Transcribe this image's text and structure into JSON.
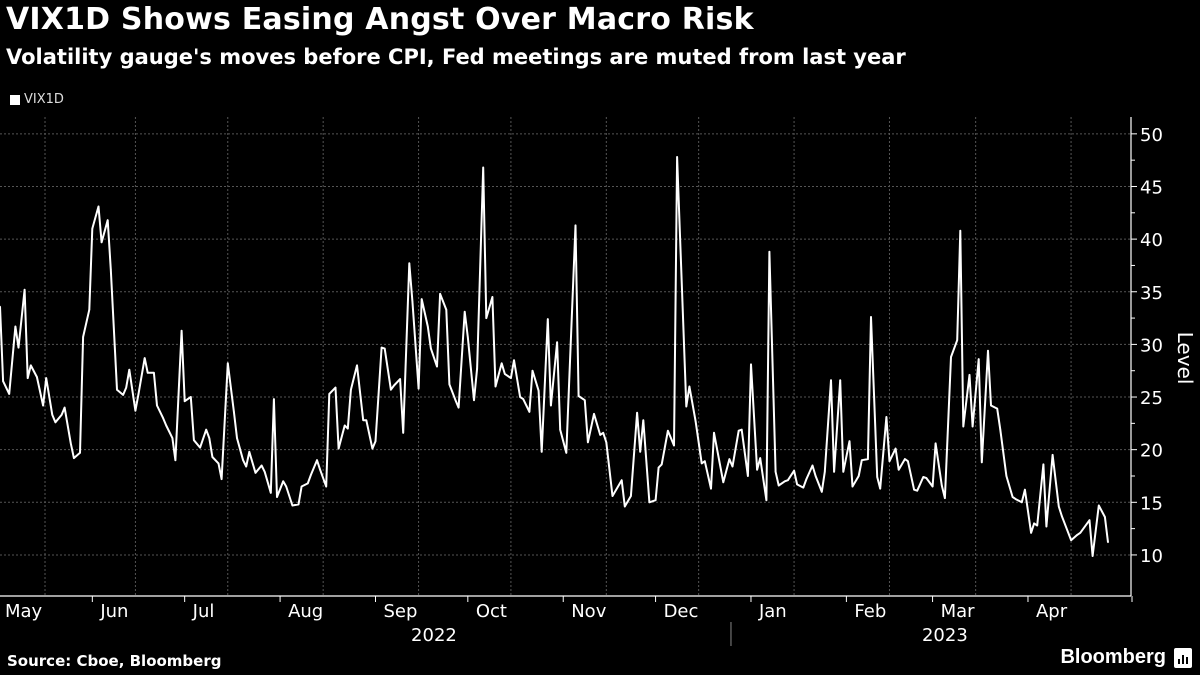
{
  "title": "VIX1D Shows Easing Angst Over Macro Risk",
  "subtitle": "Volatility gauge's moves before CPI, Fed meetings are muted from last year",
  "source": "Source: Cboe, Bloomberg",
  "brand": "Bloomberg",
  "colors": {
    "background": "#000000",
    "line": "#ffffff",
    "grid": "#555555"
  },
  "chart_data": {
    "type": "line",
    "title": "VIX1D Shows Easing Angst Over Macro Risk",
    "ylabel": "Level",
    "xlabel": "",
    "ylim": [
      6.1,
      51.6
    ],
    "xlim": [
      "2022-05-02",
      "2023-04-27"
    ],
    "y_ticks": [
      10,
      15,
      20,
      25,
      30,
      35,
      40,
      45,
      50
    ],
    "x_month_labels": [
      {
        "label": "May",
        "date": "2022-05-01"
      },
      {
        "label": "Jun",
        "date": "2022-06-01"
      },
      {
        "label": "Jul",
        "date": "2022-07-01"
      },
      {
        "label": "Aug",
        "date": "2022-08-01"
      },
      {
        "label": "Sep",
        "date": "2022-09-01"
      },
      {
        "label": "Oct",
        "date": "2022-10-01"
      },
      {
        "label": "Nov",
        "date": "2022-11-01"
      },
      {
        "label": "Dec",
        "date": "2022-12-01"
      },
      {
        "label": "Jan",
        "date": "2023-01-01"
      },
      {
        "label": "Feb",
        "date": "2023-02-01"
      },
      {
        "label": "Mar",
        "date": "2023-03-01"
      },
      {
        "label": "Apr",
        "date": "2023-04-01"
      }
    ],
    "x_year_labels": [
      {
        "label": "2022",
        "date": "2022-09-20"
      },
      {
        "label": "2023",
        "date": "2023-03-05"
      }
    ],
    "year_separator": "2023-01-01",
    "grid": true,
    "legend_position": "top-left",
    "series": [
      {
        "name": "VIX1D",
        "color": "#ffffff",
        "points": [
          [
            "2022-05-02",
            33.6
          ],
          [
            "2022-05-03",
            26.5
          ],
          [
            "2022-05-05",
            25.3
          ],
          [
            "2022-05-07",
            31.7
          ],
          [
            "2022-05-08",
            29.7
          ],
          [
            "2022-05-10",
            35.2
          ],
          [
            "2022-05-11",
            26.8
          ],
          [
            "2022-05-12",
            28.0
          ],
          [
            "2022-05-14",
            26.9
          ],
          [
            "2022-05-16",
            24.2
          ],
          [
            "2022-05-17",
            26.8
          ],
          [
            "2022-05-19",
            23.3
          ],
          [
            "2022-05-20",
            22.6
          ],
          [
            "2022-05-22",
            23.3
          ],
          [
            "2022-05-23",
            24.0
          ],
          [
            "2022-05-25",
            20.6
          ],
          [
            "2022-05-26",
            19.2
          ],
          [
            "2022-05-28",
            19.7
          ],
          [
            "2022-05-29",
            30.7
          ],
          [
            "2022-05-31",
            33.3
          ],
          [
            "2022-06-01",
            41.0
          ],
          [
            "2022-06-03",
            43.1
          ],
          [
            "2022-06-04",
            39.7
          ],
          [
            "2022-06-06",
            41.8
          ],
          [
            "2022-06-07",
            37.1
          ],
          [
            "2022-06-09",
            25.7
          ],
          [
            "2022-06-11",
            25.2
          ],
          [
            "2022-06-12",
            25.9
          ],
          [
            "2022-06-13",
            27.6
          ],
          [
            "2022-06-15",
            23.7
          ],
          [
            "2022-06-16",
            25.3
          ],
          [
            "2022-06-18",
            28.7
          ],
          [
            "2022-06-19",
            27.3
          ],
          [
            "2022-06-21",
            27.3
          ],
          [
            "2022-06-22",
            24.2
          ],
          [
            "2022-06-24",
            23.0
          ],
          [
            "2022-06-25",
            22.3
          ],
          [
            "2022-06-27",
            21.1
          ],
          [
            "2022-06-28",
            19.0
          ],
          [
            "2022-06-30",
            31.3
          ],
          [
            "2022-07-01",
            24.6
          ],
          [
            "2022-07-03",
            25.0
          ],
          [
            "2022-07-04",
            20.9
          ],
          [
            "2022-07-06",
            20.2
          ],
          [
            "2022-07-08",
            21.9
          ],
          [
            "2022-07-09",
            21.1
          ],
          [
            "2022-07-10",
            19.3
          ],
          [
            "2022-07-12",
            18.7
          ],
          [
            "2022-07-13",
            17.2
          ],
          [
            "2022-07-15",
            28.2
          ],
          [
            "2022-07-17",
            23.6
          ],
          [
            "2022-07-18",
            21.1
          ],
          [
            "2022-07-20",
            19.0
          ],
          [
            "2022-07-21",
            18.4
          ],
          [
            "2022-07-22",
            19.8
          ],
          [
            "2022-07-24",
            17.8
          ],
          [
            "2022-07-26",
            18.5
          ],
          [
            "2022-07-27",
            17.9
          ],
          [
            "2022-07-29",
            15.9
          ],
          [
            "2022-07-30",
            24.8
          ],
          [
            "2022-07-31",
            15.5
          ],
          [
            "2022-08-02",
            17.0
          ],
          [
            "2022-08-03",
            16.5
          ],
          [
            "2022-08-05",
            14.7
          ],
          [
            "2022-08-07",
            14.8
          ],
          [
            "2022-08-08",
            16.5
          ],
          [
            "2022-08-10",
            16.8
          ],
          [
            "2022-08-11",
            17.6
          ],
          [
            "2022-08-13",
            19.0
          ],
          [
            "2022-08-14",
            18.1
          ],
          [
            "2022-08-16",
            16.5
          ],
          [
            "2022-08-17",
            25.3
          ],
          [
            "2022-08-19",
            25.9
          ],
          [
            "2022-08-20",
            20.1
          ],
          [
            "2022-08-22",
            22.3
          ],
          [
            "2022-08-23",
            22.0
          ],
          [
            "2022-08-24",
            25.7
          ],
          [
            "2022-08-26",
            28.0
          ],
          [
            "2022-08-28",
            22.8
          ],
          [
            "2022-08-29",
            22.8
          ],
          [
            "2022-08-31",
            20.1
          ],
          [
            "2022-09-01",
            20.8
          ],
          [
            "2022-09-03",
            29.7
          ],
          [
            "2022-09-04",
            29.6
          ],
          [
            "2022-09-06",
            25.7
          ],
          [
            "2022-09-07",
            26.1
          ],
          [
            "2022-09-09",
            26.7
          ],
          [
            "2022-09-10",
            21.6
          ],
          [
            "2022-09-12",
            37.7
          ],
          [
            "2022-09-13",
            34.1
          ],
          [
            "2022-09-15",
            25.8
          ],
          [
            "2022-09-16",
            34.3
          ],
          [
            "2022-09-18",
            31.7
          ],
          [
            "2022-09-19",
            29.6
          ],
          [
            "2022-09-21",
            27.9
          ],
          [
            "2022-09-22",
            34.8
          ],
          [
            "2022-09-24",
            33.3
          ],
          [
            "2022-09-25",
            26.2
          ],
          [
            "2022-09-27",
            24.7
          ],
          [
            "2022-09-28",
            24.0
          ],
          [
            "2022-09-30",
            33.1
          ],
          [
            "2022-10-01",
            30.7
          ],
          [
            "2022-10-03",
            24.7
          ],
          [
            "2022-10-04",
            27.7
          ],
          [
            "2022-10-06",
            46.8
          ],
          [
            "2022-10-07",
            32.5
          ],
          [
            "2022-10-09",
            34.5
          ],
          [
            "2022-10-10",
            26.0
          ],
          [
            "2022-10-12",
            28.2
          ],
          [
            "2022-10-13",
            27.2
          ],
          [
            "2022-10-15",
            26.8
          ],
          [
            "2022-10-16",
            28.5
          ],
          [
            "2022-10-18",
            25.0
          ],
          [
            "2022-10-19",
            24.8
          ],
          [
            "2022-10-21",
            23.6
          ],
          [
            "2022-10-22",
            27.5
          ],
          [
            "2022-10-24",
            25.6
          ],
          [
            "2022-10-25",
            19.8
          ],
          [
            "2022-10-27",
            32.4
          ],
          [
            "2022-10-28",
            24.2
          ],
          [
            "2022-10-30",
            30.2
          ],
          [
            "2022-10-31",
            21.9
          ],
          [
            "2022-11-02",
            19.7
          ],
          [
            "2022-11-05",
            41.3
          ],
          [
            "2022-11-06",
            25.1
          ],
          [
            "2022-11-08",
            24.7
          ],
          [
            "2022-11-09",
            20.7
          ],
          [
            "2022-11-11",
            23.4
          ],
          [
            "2022-11-13",
            21.4
          ],
          [
            "2022-11-14",
            21.6
          ],
          [
            "2022-11-15",
            20.7
          ],
          [
            "2022-11-17",
            15.6
          ],
          [
            "2022-11-20",
            17.1
          ],
          [
            "2022-11-21",
            14.6
          ],
          [
            "2022-11-23",
            15.6
          ],
          [
            "2022-11-25",
            23.5
          ],
          [
            "2022-11-26",
            19.8
          ],
          [
            "2022-11-27",
            22.8
          ],
          [
            "2022-11-29",
            15.0
          ],
          [
            "2022-12-01",
            15.2
          ],
          [
            "2022-12-02",
            18.3
          ],
          [
            "2022-12-03",
            18.6
          ],
          [
            "2022-12-05",
            21.8
          ],
          [
            "2022-12-07",
            20.4
          ],
          [
            "2022-12-08",
            47.8
          ],
          [
            "2022-12-11",
            24.1
          ],
          [
            "2022-12-12",
            26.0
          ],
          [
            "2022-12-14",
            22.7
          ],
          [
            "2022-12-16",
            18.7
          ],
          [
            "2022-12-17",
            18.9
          ],
          [
            "2022-12-19",
            16.3
          ],
          [
            "2022-12-20",
            21.6
          ],
          [
            "2022-12-23",
            16.9
          ],
          [
            "2022-12-25",
            19.1
          ],
          [
            "2022-12-26",
            18.4
          ],
          [
            "2022-12-28",
            21.8
          ],
          [
            "2022-12-29",
            21.9
          ],
          [
            "2022-12-31",
            17.5
          ],
          [
            "2023-01-01",
            28.1
          ],
          [
            "2023-01-03",
            18.1
          ],
          [
            "2023-01-04",
            19.2
          ],
          [
            "2023-01-06",
            15.2
          ],
          [
            "2023-01-07",
            38.8
          ],
          [
            "2023-01-09",
            17.9
          ],
          [
            "2023-01-10",
            16.6
          ],
          [
            "2023-01-12",
            17.0
          ],
          [
            "2023-01-13",
            17.1
          ],
          [
            "2023-01-15",
            18.0
          ],
          [
            "2023-01-16",
            16.7
          ],
          [
            "2023-01-18",
            16.4
          ],
          [
            "2023-01-19",
            17.2
          ],
          [
            "2023-01-21",
            18.5
          ],
          [
            "2023-01-22",
            17.5
          ],
          [
            "2023-01-24",
            16.0
          ],
          [
            "2023-01-25",
            17.9
          ],
          [
            "2023-01-27",
            26.6
          ],
          [
            "2023-01-28",
            17.9
          ],
          [
            "2023-01-30",
            26.6
          ],
          [
            "2023-01-31",
            17.9
          ],
          [
            "2023-02-02",
            20.8
          ],
          [
            "2023-02-03",
            16.5
          ],
          [
            "2023-02-05",
            17.5
          ],
          [
            "2023-02-06",
            19.0
          ],
          [
            "2023-02-08",
            19.1
          ],
          [
            "2023-02-09",
            32.6
          ],
          [
            "2023-02-11",
            17.4
          ],
          [
            "2023-02-12",
            16.3
          ],
          [
            "2023-02-14",
            23.1
          ],
          [
            "2023-02-15",
            18.9
          ],
          [
            "2023-02-17",
            20.1
          ],
          [
            "2023-02-18",
            18.1
          ],
          [
            "2023-02-20",
            19.1
          ],
          [
            "2023-02-21",
            18.9
          ],
          [
            "2023-02-23",
            16.2
          ],
          [
            "2023-02-24",
            16.1
          ],
          [
            "2023-02-26",
            17.4
          ],
          [
            "2023-02-27",
            17.3
          ],
          [
            "2023-03-01",
            16.5
          ],
          [
            "2023-03-02",
            20.6
          ],
          [
            "2023-03-04",
            16.6
          ],
          [
            "2023-03-05",
            15.4
          ],
          [
            "2023-03-07",
            28.8
          ],
          [
            "2023-03-09",
            30.4
          ],
          [
            "2023-03-10",
            40.8
          ],
          [
            "2023-03-11",
            22.2
          ],
          [
            "2023-03-13",
            27.1
          ],
          [
            "2023-03-14",
            22.2
          ],
          [
            "2023-03-16",
            28.6
          ],
          [
            "2023-03-17",
            18.8
          ],
          [
            "2023-03-19",
            29.4
          ],
          [
            "2023-03-20",
            24.2
          ],
          [
            "2023-03-22",
            23.9
          ],
          [
            "2023-03-23",
            21.9
          ],
          [
            "2023-03-25",
            17.5
          ],
          [
            "2023-03-27",
            15.5
          ],
          [
            "2023-03-28",
            15.3
          ],
          [
            "2023-03-30",
            15.0
          ],
          [
            "2023-03-31",
            16.2
          ],
          [
            "2023-04-02",
            12.1
          ],
          [
            "2023-04-03",
            13.0
          ],
          [
            "2023-04-04",
            12.8
          ],
          [
            "2023-04-06",
            18.6
          ],
          [
            "2023-04-07",
            12.7
          ],
          [
            "2023-04-09",
            19.5
          ],
          [
            "2023-04-11",
            14.6
          ],
          [
            "2023-04-12",
            13.7
          ],
          [
            "2023-04-15",
            11.4
          ],
          [
            "2023-04-17",
            11.9
          ],
          [
            "2023-04-18",
            12.1
          ],
          [
            "2023-04-21",
            13.3
          ],
          [
            "2023-04-22",
            9.9
          ],
          [
            "2023-04-24",
            14.7
          ],
          [
            "2023-04-26",
            13.6
          ],
          [
            "2023-04-27",
            11.2
          ]
        ]
      }
    ]
  }
}
